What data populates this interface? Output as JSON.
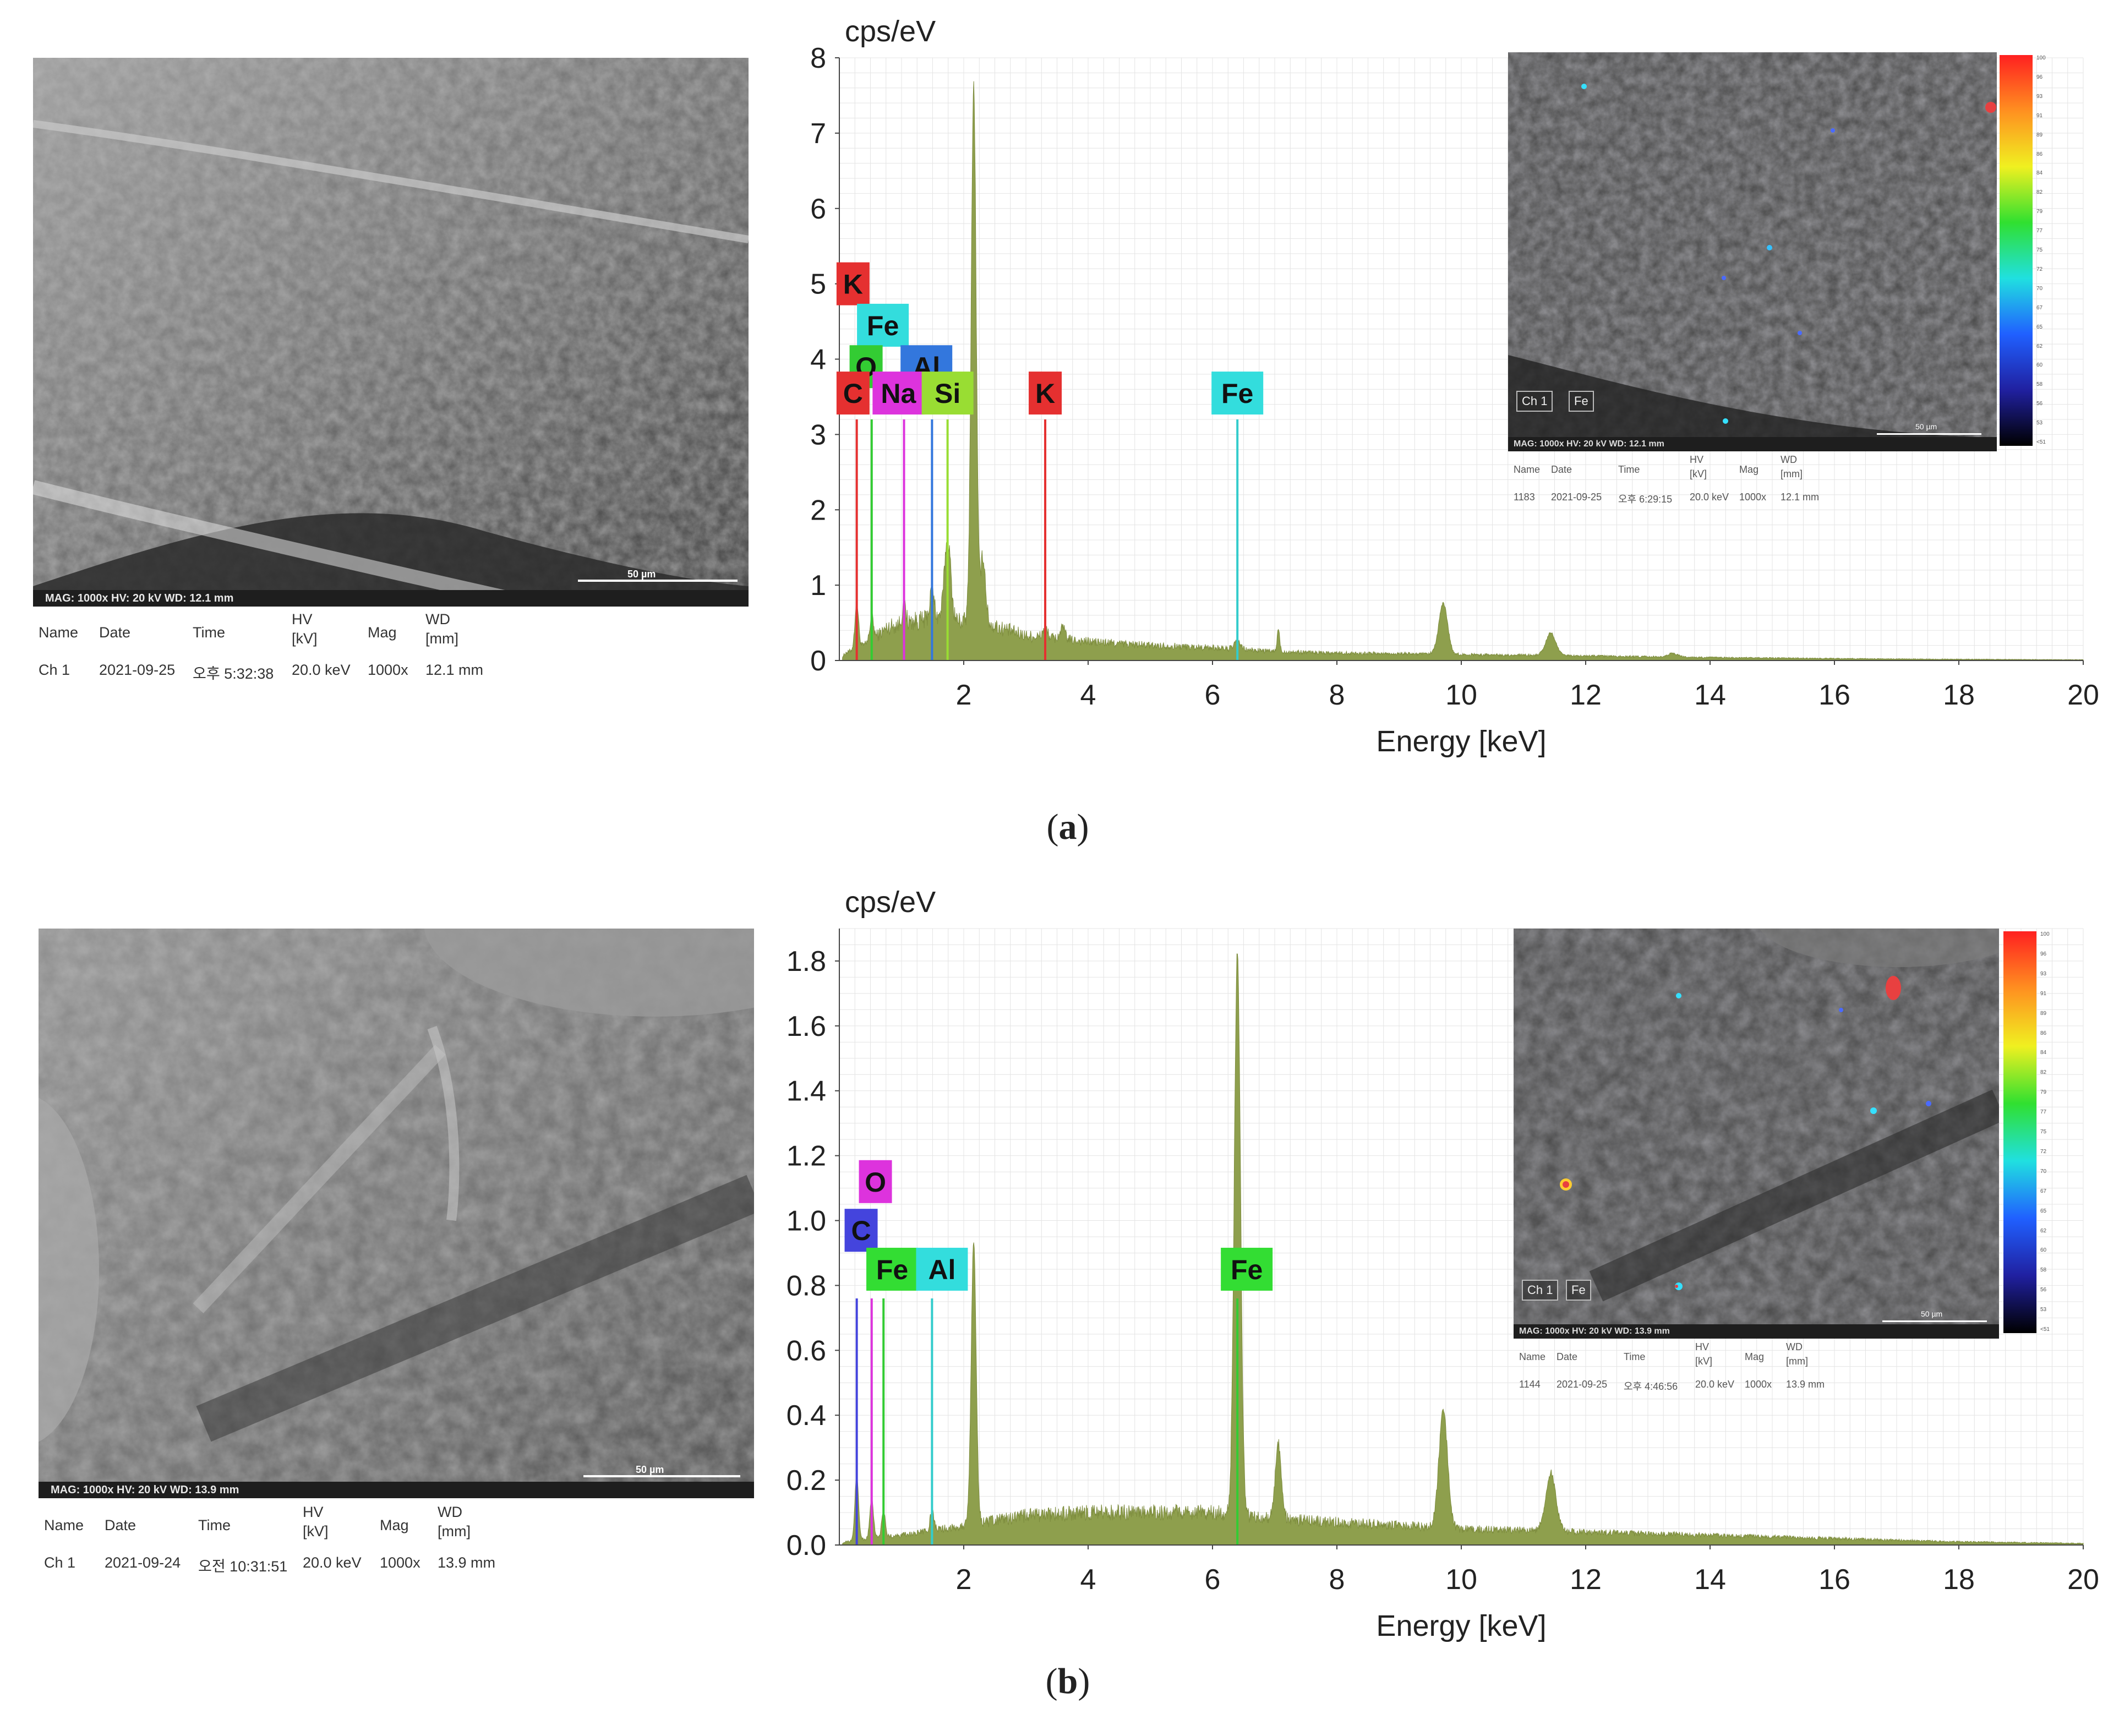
{
  "panels": [
    {
      "label_open": "(",
      "label_letter": "a",
      "label_close": ")",
      "sem": {
        "footer": "MAG: 1000x   HV: 20 kV   WD: 12.1 mm",
        "scalebar": "50 µm",
        "meta_headers": [
          "Name",
          "Date",
          "Time",
          "HV",
          "[kV]",
          "Mag",
          "WD",
          "[mm]"
        ],
        "meta_values": [
          "Ch 1",
          "2021-09-25",
          "오후 5:32:38",
          "20.0 keV",
          "1000x",
          "12.1 mm"
        ]
      },
      "map": {
        "chips": [
          "Ch 1",
          "Fe"
        ],
        "footer": "MAG: 1000x   HV: 20 kV   WD: 12.1 mm",
        "scalebar": "50 µm",
        "meta_headers": [
          "Name",
          "Date",
          "Time",
          "HV",
          "[kV]",
          "Mag",
          "WD",
          "[mm]"
        ],
        "meta_values": [
          "1183",
          "2021-09-25",
          "오후 6:29:15",
          "20.0 keV",
          "1000x",
          "12.1 mm"
        ],
        "colorbar_ticks": [
          "100",
          "96",
          "93",
          "91",
          "89",
          "86",
          "84",
          "82",
          "79",
          "77",
          "75",
          "72",
          "70",
          "67",
          "65",
          "62",
          "60",
          "58",
          "56",
          "53",
          "<51"
        ],
        "colors": {
          "accent": "#8e9f4d"
        }
      }
    },
    {
      "label_open": "(",
      "label_letter": "b",
      "label_close": ")",
      "sem": {
        "footer": "MAG: 1000x   HV: 20 kV   WD: 13.9 mm",
        "scalebar": "50 µm",
        "meta_headers": [
          "Name",
          "Date",
          "Time",
          "HV",
          "[kV]",
          "Mag",
          "WD",
          "[mm]"
        ],
        "meta_values": [
          "Ch 1",
          "2021-09-24",
          "오전 10:31:51",
          "20.0 keV",
          "1000x",
          "13.9 mm"
        ]
      },
      "map": {
        "chips": [
          "Ch 1",
          "Fe"
        ],
        "footer": "MAG: 1000x   HV: 20 kV   WD: 13.9 mm",
        "scalebar": "50 µm",
        "meta_headers": [
          "Name",
          "Date",
          "Time",
          "HV",
          "[kV]",
          "Mag",
          "WD",
          "[mm]"
        ],
        "meta_values": [
          "1144",
          "2021-09-25",
          "오후 4:46:56",
          "20.0 keV",
          "1000x",
          "13.9 mm"
        ],
        "colorbar_ticks": [
          "100",
          "96",
          "93",
          "91",
          "89",
          "86",
          "84",
          "82",
          "79",
          "77",
          "75",
          "72",
          "70",
          "67",
          "65",
          "62",
          "60",
          "58",
          "56",
          "53",
          "<51"
        ],
        "colors": {
          "accent": "#8e9f4d"
        }
      }
    }
  ],
  "chart_data": [
    {
      "type": "area",
      "ylabel": "cps/eV",
      "xlabel": "Energy [keV]",
      "xlim": [
        0,
        20
      ],
      "ylim": [
        0,
        8
      ],
      "xticks": [
        2,
        4,
        6,
        8,
        10,
        12,
        14,
        16,
        18,
        20
      ],
      "yticks": [
        0,
        1,
        2,
        3,
        4,
        5,
        6,
        7,
        8
      ],
      "grid": true,
      "fill_color": "#8e9f4d",
      "baseline": [
        [
          0.1,
          0.1
        ],
        [
          0.4,
          0.2
        ],
        [
          0.8,
          0.45
        ],
        [
          1.2,
          0.52
        ],
        [
          1.6,
          0.55
        ],
        [
          2.4,
          0.48
        ],
        [
          3.0,
          0.33
        ],
        [
          4.0,
          0.25
        ],
        [
          5.0,
          0.2
        ],
        [
          6.0,
          0.17
        ],
        [
          7.0,
          0.12
        ],
        [
          8.0,
          0.1
        ],
        [
          10.0,
          0.08
        ],
        [
          12.0,
          0.06
        ],
        [
          14.0,
          0.04
        ],
        [
          17.0,
          0.02
        ],
        [
          20.0,
          0.01
        ]
      ],
      "peaks": [
        {
          "x": 0.28,
          "h": 0.6,
          "w": 0.03
        },
        {
          "x": 0.52,
          "h": 0.3,
          "w": 0.03
        },
        {
          "x": 1.04,
          "h": 0.25,
          "w": 0.03
        },
        {
          "x": 1.49,
          "h": 0.35,
          "w": 0.04
        },
        {
          "x": 1.74,
          "h": 1.1,
          "w": 0.05
        },
        {
          "x": 2.16,
          "h": 7.1,
          "w": 0.04
        },
        {
          "x": 2.31,
          "h": 0.9,
          "w": 0.04
        },
        {
          "x": 3.31,
          "h": 0.12,
          "w": 0.04
        },
        {
          "x": 3.59,
          "h": 0.15,
          "w": 0.04
        },
        {
          "x": 6.4,
          "h": 0.1,
          "w": 0.05
        },
        {
          "x": 7.06,
          "h": 0.3,
          "w": 0.02
        },
        {
          "x": 9.71,
          "h": 0.68,
          "w": 0.07
        },
        {
          "x": 11.44,
          "h": 0.3,
          "w": 0.08
        },
        {
          "x": 13.4,
          "h": 0.05,
          "w": 0.08
        }
      ],
      "element_lines": [
        {
          "x": 0.28,
          "y": 3.2,
          "color": "#e53030"
        },
        {
          "x": 0.52,
          "y": 3.2,
          "color": "#33cc33"
        },
        {
          "x": 1.04,
          "y": 3.2,
          "color": "#dd33dd"
        },
        {
          "x": 1.49,
          "y": 3.2,
          "color": "#3377dd"
        },
        {
          "x": 1.74,
          "y": 3.2,
          "color": "#99dd33"
        },
        {
          "x": 3.31,
          "y": 3.2,
          "color": "#e53030"
        },
        {
          "x": 6.4,
          "y": 3.2,
          "color": "#33cccc"
        }
      ],
      "element_labels": [
        {
          "text": "K",
          "x": 0.22,
          "y": 5.0,
          "color": "#e53030"
        },
        {
          "text": "Fe",
          "x": 0.7,
          "y": 4.45,
          "color": "#33dddd"
        },
        {
          "text": "O",
          "x": 0.43,
          "y": 3.9,
          "color": "#33cc33"
        },
        {
          "text": "Al",
          "x": 1.4,
          "y": 3.9,
          "color": "#3377dd"
        },
        {
          "text": "C",
          "x": 0.22,
          "y": 3.55,
          "color": "#e53030"
        },
        {
          "text": "Na",
          "x": 0.95,
          "y": 3.55,
          "color": "#dd33dd"
        },
        {
          "text": "Si",
          "x": 1.74,
          "y": 3.55,
          "color": "#99dd33"
        },
        {
          "text": "K",
          "x": 3.31,
          "y": 3.55,
          "color": "#e53030"
        },
        {
          "text": "Fe",
          "x": 6.4,
          "y": 3.55,
          "color": "#33dddd"
        }
      ]
    },
    {
      "type": "area",
      "ylabel": "cps/eV",
      "xlabel": "Energy [keV]",
      "xlim": [
        0,
        20
      ],
      "ylim": [
        0,
        1.9
      ],
      "xticks": [
        2,
        4,
        6,
        8,
        10,
        12,
        14,
        16,
        18,
        20
      ],
      "yticks": [
        0.0,
        0.2,
        0.4,
        0.6,
        0.8,
        1.0,
        1.2,
        1.4,
        1.6,
        1.8
      ],
      "ytick_labels": [
        "0.0",
        "0.2",
        "0.4",
        "0.6",
        "0.8",
        "1.0",
        "1.2",
        "1.4",
        "1.6",
        "1.8"
      ],
      "grid": true,
      "fill_color": "#8e9f4d",
      "baseline": [
        [
          0.1,
          0.01
        ],
        [
          0.5,
          0.02
        ],
        [
          1.0,
          0.03
        ],
        [
          2.0,
          0.06
        ],
        [
          3.0,
          0.09
        ],
        [
          4.0,
          0.1
        ],
        [
          5.0,
          0.1
        ],
        [
          6.0,
          0.1
        ],
        [
          7.0,
          0.08
        ],
        [
          8.0,
          0.07
        ],
        [
          10.0,
          0.05
        ],
        [
          12.0,
          0.04
        ],
        [
          14.0,
          0.03
        ],
        [
          16.0,
          0.02
        ],
        [
          18.0,
          0.01
        ],
        [
          20.0,
          0.005
        ]
      ],
      "peaks": [
        {
          "x": 0.28,
          "h": 0.2,
          "w": 0.03
        },
        {
          "x": 0.52,
          "h": 0.12,
          "w": 0.03
        },
        {
          "x": 0.71,
          "h": 0.08,
          "w": 0.03
        },
        {
          "x": 1.49,
          "h": 0.06,
          "w": 0.03
        },
        {
          "x": 2.16,
          "h": 0.87,
          "w": 0.04
        },
        {
          "x": 6.4,
          "h": 1.73,
          "w": 0.05
        },
        {
          "x": 7.06,
          "h": 0.23,
          "w": 0.05
        },
        {
          "x": 9.71,
          "h": 0.36,
          "w": 0.07
        },
        {
          "x": 11.44,
          "h": 0.18,
          "w": 0.08
        }
      ],
      "element_lines": [
        {
          "x": 0.28,
          "y": 0.76,
          "color": "#4444dd"
        },
        {
          "x": 0.52,
          "y": 0.76,
          "color": "#dd33dd"
        },
        {
          "x": 0.71,
          "y": 0.76,
          "color": "#33cc33"
        },
        {
          "x": 1.49,
          "y": 0.76,
          "color": "#33cccc"
        },
        {
          "x": 6.4,
          "y": 0.76,
          "color": "#33cc33"
        }
      ],
      "element_labels": [
        {
          "text": "O",
          "x": 0.58,
          "y": 1.12,
          "color": "#dd33dd"
        },
        {
          "text": "C",
          "x": 0.35,
          "y": 0.97,
          "color": "#4444dd"
        },
        {
          "text": "Fe",
          "x": 0.85,
          "y": 0.85,
          "color": "#33dd33"
        },
        {
          "text": "Al",
          "x": 1.65,
          "y": 0.85,
          "color": "#33dddd"
        },
        {
          "text": "Fe",
          "x": 6.55,
          "y": 0.85,
          "color": "#33dd33"
        }
      ]
    }
  ]
}
